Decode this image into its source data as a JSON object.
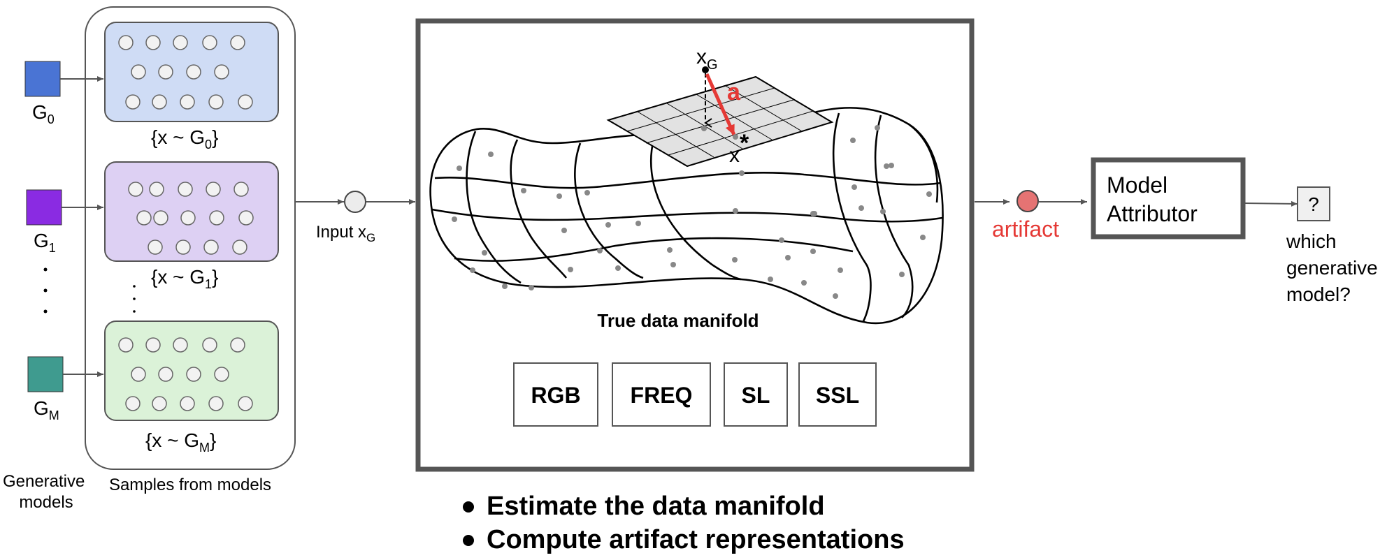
{
  "generators": [
    {
      "base": "G",
      "sub": "0",
      "color": "#4a74d4",
      "set_label": "{x ~ G",
      "set_sub": "0",
      "set_close": "}",
      "panel_color": "#cfdcf5"
    },
    {
      "base": "G",
      "sub": "1",
      "color": "#8a2be2",
      "set_label": "{x ~ G",
      "set_sub": "1",
      "set_close": "}",
      "panel_color": "#ddd0f3"
    },
    {
      "base": "G",
      "sub": "M",
      "color": "#3f9b8f",
      "set_label": "{x ~ G",
      "set_sub": "M",
      "set_close": "}",
      "panel_color": "#dbf2d8"
    }
  ],
  "captions": {
    "generative_models_line1": "Generative",
    "generative_models_line2": "models",
    "samples_from_models": "Samples from models"
  },
  "input": {
    "label": "Input x",
    "sub": "G"
  },
  "manifold": {
    "title": "True data manifold",
    "point_label": "x",
    "point_sub": "G",
    "arrow_label": "a",
    "star_label": "x",
    "star_sup": "*",
    "representations": [
      "RGB",
      "FREQ",
      "SL",
      "SSL"
    ]
  },
  "bullets": [
    "Estimate the data manifold",
    "Compute artifact representations"
  ],
  "artifact": {
    "label": "artifact",
    "color": "#e53935",
    "node_color": "#e57373"
  },
  "attributor": {
    "line1": "Model",
    "line2": "Attributor"
  },
  "output": {
    "symbol": "?",
    "line1": "which",
    "line2": "generative",
    "line3": "model?"
  }
}
